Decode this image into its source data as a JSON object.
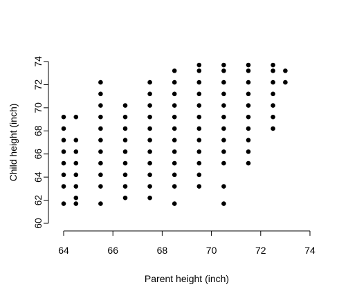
{
  "chart_data": {
    "type": "scatter",
    "title": "",
    "xlabel": "Parent height (inch)",
    "ylabel": "Child height (inch)",
    "xlim": [
      64,
      74
    ],
    "ylim": [
      60,
      74
    ],
    "x_ticks": [
      64,
      66,
      68,
      70,
      72,
      74
    ],
    "y_ticks": [
      60,
      62,
      64,
      66,
      68,
      70,
      72,
      74
    ],
    "x_tick_labels": [
      "64",
      "66",
      "68",
      "70",
      "72",
      "74"
    ],
    "y_tick_labels": [
      "60",
      "62",
      "64",
      "66",
      "68",
      "70",
      "72",
      "74"
    ],
    "grid": false,
    "point_color": "#000000",
    "columns": [
      {
        "x": 64.0,
        "y": [
          61.7,
          63.2,
          64.2,
          65.2,
          66.2,
          67.2,
          68.2,
          69.2
        ]
      },
      {
        "x": 64.5,
        "y": [
          61.7,
          62.2,
          63.2,
          64.2,
          65.2,
          66.2,
          67.2,
          69.2
        ]
      },
      {
        "x": 65.5,
        "y": [
          61.7,
          63.2,
          64.2,
          65.2,
          66.2,
          67.2,
          68.2,
          69.2,
          70.2,
          71.2,
          72.2
        ]
      },
      {
        "x": 66.5,
        "y": [
          62.2,
          63.2,
          64.2,
          65.2,
          66.2,
          67.2,
          68.2,
          69.2,
          70.2
        ]
      },
      {
        "x": 67.5,
        "y": [
          62.2,
          63.2,
          64.2,
          65.2,
          66.2,
          67.2,
          68.2,
          69.2,
          70.2,
          71.2,
          72.2
        ]
      },
      {
        "x": 68.5,
        "y": [
          61.7,
          63.2,
          64.2,
          65.2,
          66.2,
          67.2,
          68.2,
          69.2,
          70.2,
          71.2,
          72.2,
          73.2
        ]
      },
      {
        "x": 69.5,
        "y": [
          63.2,
          64.2,
          65.2,
          66.2,
          67.2,
          68.2,
          69.2,
          70.2,
          71.2,
          72.2,
          73.2,
          73.7
        ]
      },
      {
        "x": 70.5,
        "y": [
          61.7,
          63.2,
          65.2,
          66.2,
          67.2,
          68.2,
          69.2,
          70.2,
          71.2,
          72.2,
          73.2,
          73.7
        ]
      },
      {
        "x": 71.5,
        "y": [
          65.2,
          66.2,
          67.2,
          68.2,
          69.2,
          70.2,
          71.2,
          72.2,
          73.2,
          73.7
        ]
      },
      {
        "x": 72.5,
        "y": [
          68.2,
          69.2,
          70.2,
          71.2,
          72.2,
          73.2,
          73.7
        ]
      },
      {
        "x": 73.0,
        "y": [
          72.2,
          73.2
        ]
      }
    ]
  }
}
